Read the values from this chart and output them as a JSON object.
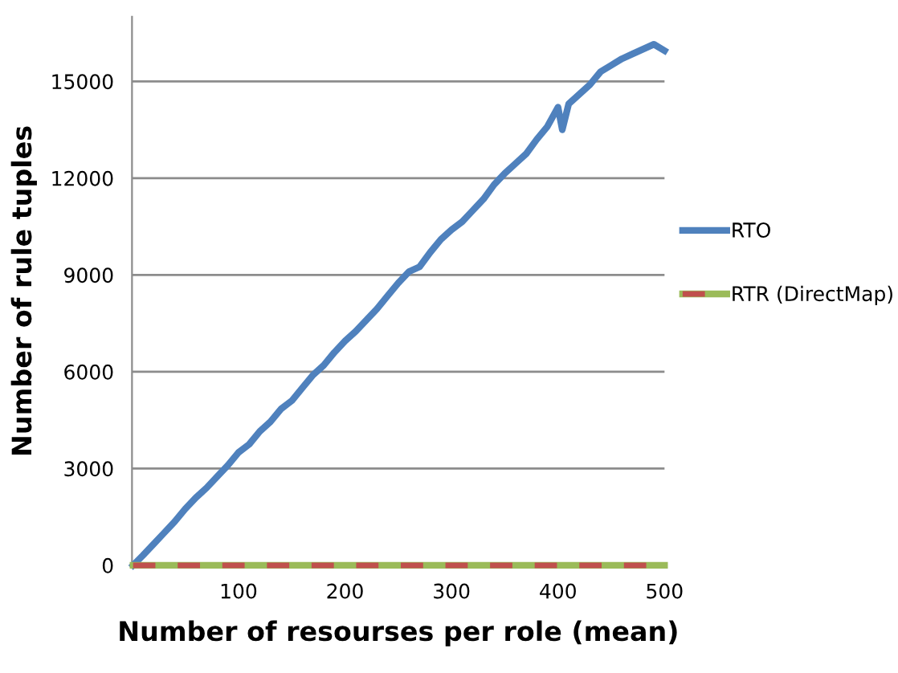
{
  "chart_data": {
    "type": "line",
    "xlabel": "Number of resourses per role (mean)",
    "ylabel": "Number of rule tuples",
    "xlim": [
      0,
      500
    ],
    "xticks": [
      100,
      200,
      300,
      400,
      500
    ],
    "ylim": [
      0,
      17000
    ],
    "yticks": [
      0,
      3000,
      6000,
      9000,
      12000,
      15000
    ],
    "grid": "y",
    "legend": "right",
    "marker": "none",
    "series": [
      {
        "name": "RTO",
        "color": "#4f81bd",
        "line_style": "solid",
        "x": [
          1,
          10,
          20,
          30,
          40,
          50,
          60,
          70,
          80,
          90,
          100,
          110,
          120,
          130,
          140,
          150,
          160,
          170,
          180,
          190,
          200,
          210,
          220,
          230,
          240,
          250,
          260,
          270,
          280,
          290,
          300,
          310,
          320,
          330,
          340,
          350,
          360,
          370,
          380,
          390,
          400,
          404,
          410,
          420,
          430,
          440,
          450,
          460,
          470,
          480,
          490,
          500
        ],
        "values": [
          0,
          300,
          650,
          1000,
          1350,
          1750,
          2100,
          2400,
          2750,
          3100,
          3500,
          3750,
          4150,
          4450,
          4850,
          5100,
          5500,
          5900,
          6200,
          6600,
          6950,
          7250,
          7600,
          7950,
          8350,
          8750,
          9100,
          9250,
          9700,
          10100,
          10400,
          10650,
          11000,
          11350,
          11800,
          12150,
          12450,
          12750,
          13200,
          13600,
          14200,
          13500,
          14300,
          14600,
          14900,
          15300,
          15500,
          15700,
          15850,
          16000,
          16150,
          15950
        ]
      },
      {
        "color": "#9bbb59",
        "line_style": "solid",
        "x": [
          1,
          100,
          200,
          300,
          400,
          500
        ],
        "values": [
          0,
          0,
          0,
          0,
          0,
          0
        ]
      },
      {
        "name": "RTR (DirectMap)",
        "color": "#c0504d",
        "line_style": "dashed",
        "x": [
          1,
          100,
          200,
          300,
          400,
          500
        ],
        "values": [
          0,
          0,
          0,
          0,
          0,
          0
        ]
      }
    ]
  }
}
